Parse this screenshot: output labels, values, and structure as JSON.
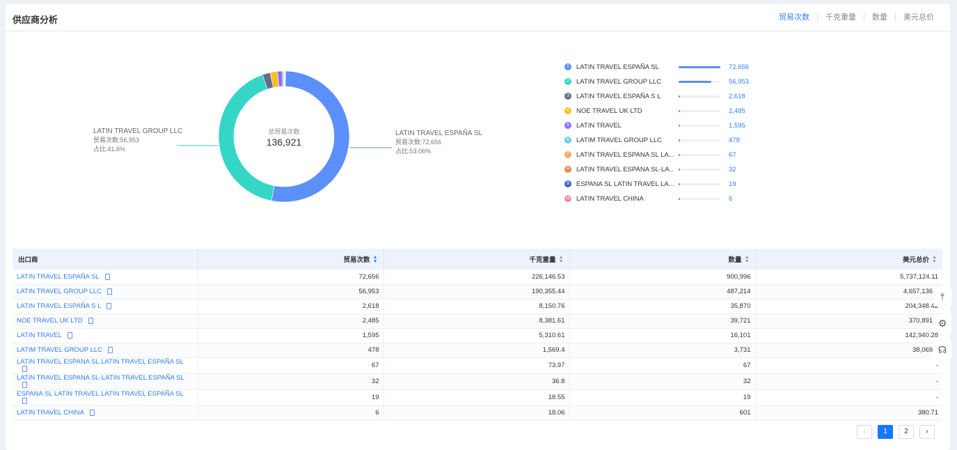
{
  "header": {
    "title": "供应商分析",
    "tabs": [
      "贸易次数",
      "千克重量",
      "数量",
      "美元总价"
    ],
    "active_tab": 0
  },
  "donut": {
    "center_label": "总贸易次数",
    "center_value": "136,921",
    "callout_right": {
      "name": "LATIN TRAVEL ESPAÑA SL",
      "count": "贸易次数:72,656",
      "share": "占比:53.06%"
    },
    "callout_left": {
      "name": "LATIN TRAVEL GROUP LLC",
      "count": "贸易次数:56,953",
      "share": "占比:41.6%"
    }
  },
  "chart_data": {
    "type": "pie",
    "title": "总贸易次数",
    "categories": [
      "LATIN TRAVEL ESPAÑA SL",
      "LATIN TRAVEL GROUP LLC",
      "LATIN TRAVEL ESPAÑA S L",
      "NOE TRAVEL UK LTD",
      "LATIN TRAVEL",
      "LATIM TRAVEL GROUP LLC",
      "LATIN TRAVEL ESPANA SL LA...",
      "LATIN TRAVEL ESPANA SL-LA...",
      "ESPANA SL LATIN TRAVEL LA...",
      "LATIN TRAVEL CHINA"
    ],
    "values": [
      72656,
      56953,
      2618,
      2485,
      1595,
      478,
      67,
      32,
      19,
      6
    ],
    "total": 136921
  },
  "legend": {
    "colors": [
      "#5b8ff9",
      "#36d6c7",
      "#5d6f8c",
      "#f6c023",
      "#8f6ef5",
      "#6dc8ec",
      "#f2a96a",
      "#e0884a",
      "#3e63c2",
      "#ef83a4"
    ],
    "items": [
      {
        "rank": "1",
        "name": "LATIN TRAVEL ESPAÑA SL",
        "value": "72,656"
      },
      {
        "rank": "2",
        "name": "LATIN TRAVEL GROUP LLC",
        "value": "56,953"
      },
      {
        "rank": "3",
        "name": "LATIN TRAVEL ESPAÑA S L",
        "value": "2,618"
      },
      {
        "rank": "4",
        "name": "NOE TRAVEL UK LTD",
        "value": "2,485"
      },
      {
        "rank": "5",
        "name": "LATIN TRAVEL",
        "value": "1,595"
      },
      {
        "rank": "6",
        "name": "LATIM TRAVEL GROUP LLC",
        "value": "478"
      },
      {
        "rank": "7",
        "name": "LATIN TRAVEL ESPANA SL LA...",
        "value": "67"
      },
      {
        "rank": "8",
        "name": "LATIN TRAVEL ESPANA SL-LA...",
        "value": "32"
      },
      {
        "rank": "9",
        "name": "ESPANA SL LATIN TRAVEL LA...",
        "value": "19"
      },
      {
        "rank": "10",
        "name": "LATIN TRAVEL CHINA",
        "value": "6"
      }
    ]
  },
  "table": {
    "columns": [
      "出口商",
      "贸易次数",
      "千克重量",
      "数量",
      "美元总价"
    ],
    "rows": [
      [
        "LATIN TRAVEL ESPAÑA SL",
        "72,656",
        "226,146.53",
        "900,996",
        "5,737,124.11"
      ],
      [
        "LATIN TRAVEL GROUP LLC",
        "56,953",
        "190,355.44",
        "487,214",
        "4,657,136.9"
      ],
      [
        "LATIN TRAVEL ESPAÑA S L",
        "2,618",
        "8,150.76",
        "35,870",
        "204,348.42"
      ],
      [
        "NOE TRAVEL UK LTD",
        "2,485",
        "8,381.61",
        "39,721",
        "370,891.4"
      ],
      [
        "LATIN TRAVEL",
        "1,595",
        "5,310.61",
        "16,101",
        "142,940.28"
      ],
      [
        "LATIM TRAVEL GROUP LLC",
        "478",
        "1,569.4",
        "3,731",
        "38,069.0"
      ],
      [
        "LATIN TRAVEL ESPANA SL LATIN TRAVEL ESPAÑA SL",
        "67",
        "73.97",
        "67",
        "-"
      ],
      [
        "LATIN TRAVEL ESPANA SL-LATIN TRAVEL ESPAÑA SL",
        "32",
        "36.8",
        "32",
        "-"
      ],
      [
        "ESPANA SL LATIN TRAVEL LATIN TRAVEL ESPAÑA SL",
        "19",
        "18.55",
        "19",
        "-"
      ],
      [
        "LATIN TRAVEL CHINA",
        "6",
        "18.06",
        "601",
        "380.71"
      ]
    ]
  },
  "side_tools": [
    {
      "icon": "back-to-top-icon",
      "glyph": "⤒"
    },
    {
      "icon": "settings-doc-icon",
      "glyph": "⚙"
    },
    {
      "icon": "headset-icon",
      "glyph": "☊"
    }
  ],
  "pagination": {
    "prev": "‹",
    "pages": [
      "1",
      "2"
    ],
    "current": "1",
    "next": "›"
  }
}
